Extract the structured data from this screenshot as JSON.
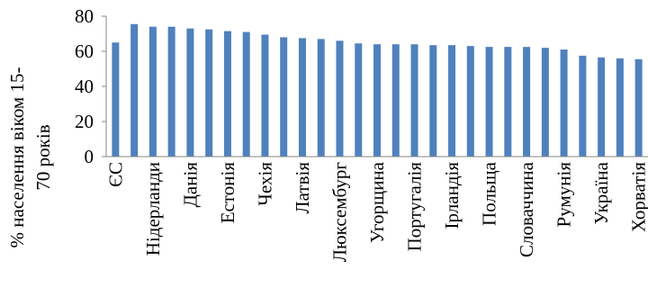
{
  "chart_data": {
    "type": "bar",
    "y_label_lines": [
      "% населення віком 15-",
      "70 років"
    ],
    "categories": [
      "ЄС",
      null,
      "Нідерланди",
      null,
      "Данія",
      null,
      "Естонія",
      null,
      "Чехія",
      null,
      "Латвія",
      null,
      "Люксембург",
      null,
      "Угорщина",
      null,
      "Португалія",
      null,
      "Ірландія",
      null,
      "Польща",
      null,
      "Словаччина",
      null,
      "Румунія",
      null,
      "Україна",
      null,
      "Хорватія"
    ],
    "values": [
      65,
      75.5,
      74,
      74,
      73,
      72.5,
      71.5,
      71,
      69.5,
      68,
      67.5,
      67,
      66,
      64.5,
      64,
      64,
      64,
      63.5,
      63.5,
      63,
      62.5,
      62.5,
      62.5,
      62,
      61,
      57.5,
      56.5,
      56,
      55.5
    ],
    "color": "#4f81bd",
    "ylim": [
      0,
      80
    ],
    "yticks": [
      0,
      20,
      40,
      60,
      80
    ],
    "grid": false
  }
}
